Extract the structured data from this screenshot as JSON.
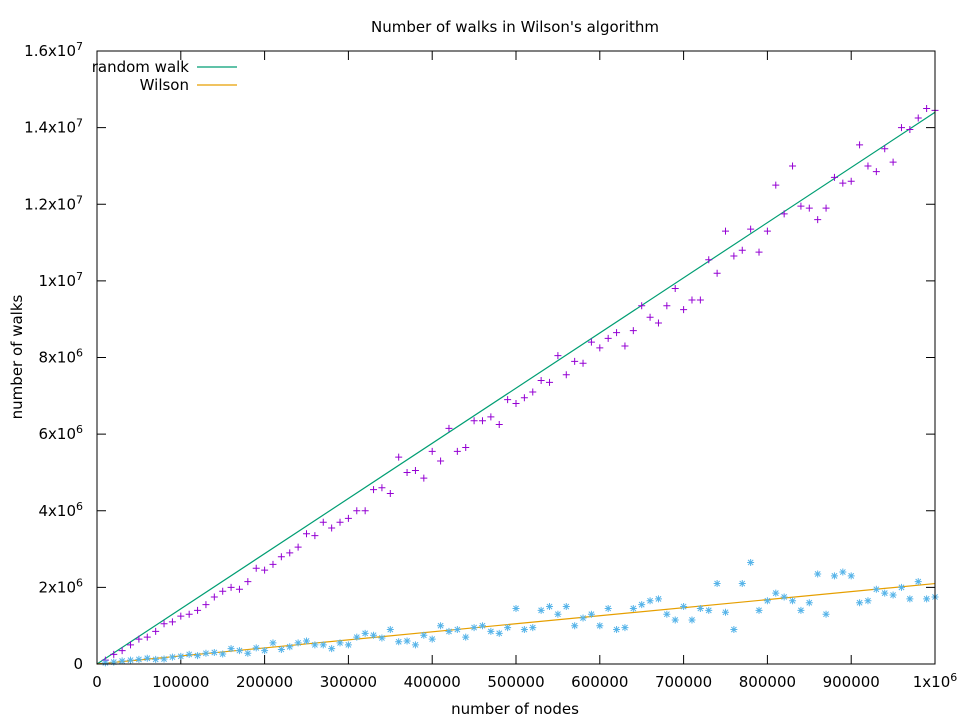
{
  "chart_data": {
    "type": "scatter",
    "title": "Number of walks in Wilson's algorithm",
    "xlabel": "number of nodes",
    "ylabel": "number of walks",
    "xlim": [
      0,
      1000000
    ],
    "ylim": [
      0,
      16000000
    ],
    "grid": false,
    "legend_position": "top-left",
    "x_ticks": [
      {
        "value": 0,
        "label": "0"
      },
      {
        "value": 100000,
        "label": "100000"
      },
      {
        "value": 200000,
        "label": "200000"
      },
      {
        "value": 300000,
        "label": "300000"
      },
      {
        "value": 400000,
        "label": "400000"
      },
      {
        "value": 500000,
        "label": "500000"
      },
      {
        "value": 600000,
        "label": "600000"
      },
      {
        "value": 700000,
        "label": "700000"
      },
      {
        "value": 800000,
        "label": "800000"
      },
      {
        "value": 900000,
        "label": "900000"
      },
      {
        "value": 1000000,
        "label": "1x10",
        "sup": "6"
      }
    ],
    "y_ticks": [
      {
        "value": 0,
        "label": "0"
      },
      {
        "value": 2000000,
        "label": "2x10",
        "sup": "6"
      },
      {
        "value": 4000000,
        "label": "4x10",
        "sup": "6"
      },
      {
        "value": 6000000,
        "label": "6x10",
        "sup": "6"
      },
      {
        "value": 8000000,
        "label": "8x10",
        "sup": "6"
      },
      {
        "value": 10000000,
        "label": "1x10",
        "sup": "7"
      },
      {
        "value": 12000000,
        "label": "1.2x10",
        "sup": "7"
      },
      {
        "value": 14000000,
        "label": "1.4x10",
        "sup": "7"
      },
      {
        "value": 16000000,
        "label": "1.6x10",
        "sup": "7"
      }
    ],
    "lines": [
      {
        "name": "random walk",
        "color": "#009e73",
        "x": [
          0,
          1000000
        ],
        "y": [
          0,
          14400000
        ]
      },
      {
        "name": "Wilson",
        "color": "#e69f00",
        "x": [
          0,
          1000000
        ],
        "y": [
          0,
          2100000
        ]
      }
    ],
    "scatter_series": [
      {
        "marker": "plus",
        "color": "#9400d3",
        "points": [
          [
            10000,
            100000
          ],
          [
            20000,
            250000
          ],
          [
            30000,
            350000
          ],
          [
            40000,
            500000
          ],
          [
            50000,
            650000
          ],
          [
            60000,
            700000
          ],
          [
            70000,
            850000
          ],
          [
            80000,
            1050000
          ],
          [
            90000,
            1100000
          ],
          [
            100000,
            1250000
          ],
          [
            110000,
            1300000
          ],
          [
            120000,
            1400000
          ],
          [
            130000,
            1550000
          ],
          [
            140000,
            1750000
          ],
          [
            150000,
            1900000
          ],
          [
            160000,
            2000000
          ],
          [
            170000,
            1950000
          ],
          [
            180000,
            2150000
          ],
          [
            190000,
            2500000
          ],
          [
            200000,
            2450000
          ],
          [
            210000,
            2600000
          ],
          [
            220000,
            2800000
          ],
          [
            230000,
            2900000
          ],
          [
            240000,
            3050000
          ],
          [
            250000,
            3400000
          ],
          [
            260000,
            3350000
          ],
          [
            270000,
            3700000
          ],
          [
            280000,
            3550000
          ],
          [
            290000,
            3700000
          ],
          [
            300000,
            3800000
          ],
          [
            310000,
            4000000
          ],
          [
            320000,
            4000000
          ],
          [
            330000,
            4550000
          ],
          [
            340000,
            4600000
          ],
          [
            350000,
            4450000
          ],
          [
            360000,
            5400000
          ],
          [
            370000,
            5000000
          ],
          [
            380000,
            5050000
          ],
          [
            390000,
            4850000
          ],
          [
            400000,
            5550000
          ],
          [
            410000,
            5300000
          ],
          [
            420000,
            6150000
          ],
          [
            430000,
            5550000
          ],
          [
            440000,
            5650000
          ],
          [
            450000,
            6350000
          ],
          [
            460000,
            6350000
          ],
          [
            470000,
            6450000
          ],
          [
            480000,
            6250000
          ],
          [
            490000,
            6900000
          ],
          [
            500000,
            6800000
          ],
          [
            510000,
            6950000
          ],
          [
            520000,
            7100000
          ],
          [
            530000,
            7400000
          ],
          [
            540000,
            7350000
          ],
          [
            550000,
            8050000
          ],
          [
            560000,
            7550000
          ],
          [
            570000,
            7900000
          ],
          [
            580000,
            7850000
          ],
          [
            590000,
            8400000
          ],
          [
            600000,
            8250000
          ],
          [
            610000,
            8500000
          ],
          [
            620000,
            8650000
          ],
          [
            630000,
            8300000
          ],
          [
            640000,
            8700000
          ],
          [
            650000,
            9350000
          ],
          [
            660000,
            9050000
          ],
          [
            670000,
            8900000
          ],
          [
            680000,
            9350000
          ],
          [
            690000,
            9800000
          ],
          [
            700000,
            9250000
          ],
          [
            710000,
            9500000
          ],
          [
            720000,
            9500000
          ],
          [
            730000,
            10550000
          ],
          [
            740000,
            10200000
          ],
          [
            750000,
            11300000
          ],
          [
            760000,
            10650000
          ],
          [
            770000,
            10800000
          ],
          [
            780000,
            11350000
          ],
          [
            790000,
            10750000
          ],
          [
            800000,
            11300000
          ],
          [
            810000,
            12500000
          ],
          [
            820000,
            11750000
          ],
          [
            830000,
            13000000
          ],
          [
            840000,
            11950000
          ],
          [
            850000,
            11900000
          ],
          [
            860000,
            11600000
          ],
          [
            870000,
            11900000
          ],
          [
            880000,
            12700000
          ],
          [
            890000,
            12550000
          ],
          [
            900000,
            12600000
          ],
          [
            910000,
            13550000
          ],
          [
            920000,
            13000000
          ],
          [
            930000,
            12850000
          ],
          [
            940000,
            13450000
          ],
          [
            950000,
            13100000
          ],
          [
            960000,
            14000000
          ],
          [
            970000,
            13950000
          ],
          [
            980000,
            14250000
          ],
          [
            990000,
            14500000
          ],
          [
            1000000,
            14450000
          ]
        ]
      },
      {
        "marker": "star",
        "color": "#56b4e9",
        "points": [
          [
            10000,
            30000
          ],
          [
            20000,
            50000
          ],
          [
            30000,
            80000
          ],
          [
            40000,
            100000
          ],
          [
            50000,
            120000
          ],
          [
            60000,
            150000
          ],
          [
            70000,
            120000
          ],
          [
            80000,
            130000
          ],
          [
            90000,
            180000
          ],
          [
            100000,
            200000
          ],
          [
            110000,
            250000
          ],
          [
            120000,
            220000
          ],
          [
            130000,
            280000
          ],
          [
            140000,
            300000
          ],
          [
            150000,
            260000
          ],
          [
            160000,
            400000
          ],
          [
            170000,
            350000
          ],
          [
            180000,
            280000
          ],
          [
            190000,
            420000
          ],
          [
            200000,
            350000
          ],
          [
            210000,
            550000
          ],
          [
            220000,
            380000
          ],
          [
            230000,
            450000
          ],
          [
            240000,
            550000
          ],
          [
            250000,
            600000
          ],
          [
            260000,
            500000
          ],
          [
            270000,
            500000
          ],
          [
            280000,
            400000
          ],
          [
            290000,
            550000
          ],
          [
            300000,
            500000
          ],
          [
            310000,
            700000
          ],
          [
            320000,
            800000
          ],
          [
            330000,
            750000
          ],
          [
            340000,
            680000
          ],
          [
            350000,
            900000
          ],
          [
            360000,
            580000
          ],
          [
            370000,
            600000
          ],
          [
            380000,
            500000
          ],
          [
            390000,
            750000
          ],
          [
            400000,
            650000
          ],
          [
            410000,
            1000000
          ],
          [
            420000,
            850000
          ],
          [
            430000,
            900000
          ],
          [
            440000,
            700000
          ],
          [
            450000,
            950000
          ],
          [
            460000,
            1000000
          ],
          [
            470000,
            850000
          ],
          [
            480000,
            800000
          ],
          [
            490000,
            950000
          ],
          [
            500000,
            1450000
          ],
          [
            510000,
            900000
          ],
          [
            520000,
            950000
          ],
          [
            530000,
            1400000
          ],
          [
            540000,
            1500000
          ],
          [
            550000,
            1300000
          ],
          [
            560000,
            1500000
          ],
          [
            570000,
            1000000
          ],
          [
            580000,
            1200000
          ],
          [
            590000,
            1300000
          ],
          [
            600000,
            1000000
          ],
          [
            610000,
            1450000
          ],
          [
            620000,
            900000
          ],
          [
            630000,
            950000
          ],
          [
            640000,
            1450000
          ],
          [
            650000,
            1550000
          ],
          [
            660000,
            1650000
          ],
          [
            670000,
            1700000
          ],
          [
            680000,
            1300000
          ],
          [
            690000,
            1150000
          ],
          [
            700000,
            1500000
          ],
          [
            710000,
            1150000
          ],
          [
            720000,
            1450000
          ],
          [
            730000,
            1400000
          ],
          [
            740000,
            2100000
          ],
          [
            750000,
            1350000
          ],
          [
            760000,
            900000
          ],
          [
            770000,
            2100000
          ],
          [
            780000,
            2650000
          ],
          [
            790000,
            1400000
          ],
          [
            800000,
            1650000
          ],
          [
            810000,
            1850000
          ],
          [
            820000,
            1750000
          ],
          [
            830000,
            1650000
          ],
          [
            840000,
            1400000
          ],
          [
            850000,
            1600000
          ],
          [
            860000,
            2350000
          ],
          [
            870000,
            1300000
          ],
          [
            880000,
            2300000
          ],
          [
            890000,
            2400000
          ],
          [
            900000,
            2300000
          ],
          [
            910000,
            1600000
          ],
          [
            920000,
            1650000
          ],
          [
            930000,
            1950000
          ],
          [
            940000,
            1850000
          ],
          [
            950000,
            1800000
          ],
          [
            960000,
            2000000
          ],
          [
            970000,
            1700000
          ],
          [
            980000,
            2150000
          ],
          [
            990000,
            1700000
          ],
          [
            1000000,
            1750000
          ]
        ]
      }
    ]
  }
}
